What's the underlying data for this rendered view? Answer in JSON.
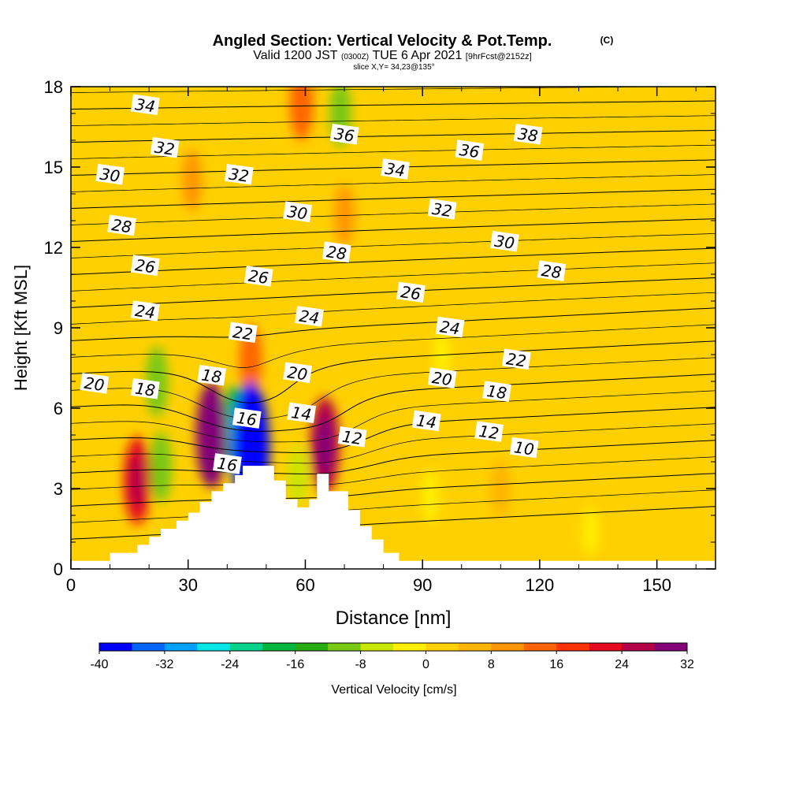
{
  "title": {
    "main": "Angled Section: Vertical Velocity & Pot.Temp.",
    "copyright": "(C)",
    "valid_prefix": "Valid 1200 JST",
    "valid_utc": "(0300Z)",
    "valid_date": "TUE 6 Apr 2021",
    "forecast": "[9hrFcst@2152z]",
    "slice": "slice X,Y= 34,23@135°"
  },
  "chart_data": {
    "type": "heatmap",
    "xlabel": "Distance [nm]",
    "ylabel": "Height [Kft MSL]",
    "xlim": [
      0,
      165
    ],
    "ylim": [
      0,
      18
    ],
    "x_ticks": [
      0,
      30,
      60,
      90,
      120,
      150
    ],
    "y_ticks": [
      0,
      3,
      6,
      9,
      12,
      15,
      18
    ],
    "colorbar": {
      "label": "Vertical Velocity [cm/s]",
      "tick_labels": [
        "-40",
        "-32",
        "-24",
        "-16",
        "-8",
        "0",
        "8",
        "16",
        "24",
        "32"
      ],
      "bins": [
        -40,
        -36,
        -32,
        -28,
        -24,
        -20,
        -16,
        -12,
        -8,
        -4,
        0,
        4,
        8,
        12,
        16,
        20,
        24,
        28,
        32
      ],
      "colors": [
        "#0000ff",
        "#0066ff",
        "#00a0ff",
        "#00e6e6",
        "#00d48c",
        "#00b43c",
        "#28aa14",
        "#78c814",
        "#c8e600",
        "#ffee00",
        "#ffd000",
        "#ffb400",
        "#ff9600",
        "#ff6400",
        "#ff3200",
        "#e60a1e",
        "#b40046",
        "#820078"
      ]
    },
    "terrain_profile": {
      "x": [
        0,
        10,
        10,
        17,
        17,
        20,
        20,
        23,
        23,
        27,
        27,
        30,
        30,
        33,
        33,
        36,
        36,
        39,
        39,
        42,
        42,
        44,
        44,
        52,
        52,
        55,
        55,
        58,
        58,
        61,
        61,
        63,
        63,
        66,
        66,
        71,
        71,
        74,
        74,
        77,
        77,
        80,
        80,
        84,
        84,
        88,
        88,
        90,
        90,
        165
      ],
      "height": [
        0.3,
        0.3,
        0.6,
        0.6,
        0.9,
        0.9,
        1.2,
        1.2,
        1.5,
        1.5,
        1.8,
        1.8,
        2.1,
        2.1,
        2.5,
        2.5,
        2.9,
        2.9,
        3.2,
        3.2,
        3.5,
        3.5,
        3.85,
        3.85,
        3.3,
        3.3,
        2.6,
        2.6,
        2.3,
        2.3,
        2.6,
        2.6,
        3.55,
        3.55,
        2.9,
        2.9,
        2.2,
        2.2,
        1.6,
        1.6,
        1.1,
        1.1,
        0.6,
        0.6,
        0.3,
        0.3,
        0.3,
        0.3,
        0.3,
        0.3
      ]
    },
    "vertical_velocity_features": [
      {
        "x": 17,
        "y": 3.3,
        "value": 20
      },
      {
        "x": 36,
        "y": 5.0,
        "value": 28
      },
      {
        "x": 46,
        "y": 4.5,
        "value": -40
      },
      {
        "x": 65,
        "y": 4.6,
        "value": 24
      },
      {
        "x": 42,
        "y": 5.2,
        "value": -20
      },
      {
        "x": 23,
        "y": 3.8,
        "value": -12
      },
      {
        "x": 22,
        "y": 7.0,
        "value": -12
      },
      {
        "x": 58,
        "y": 3.5,
        "value": -6
      },
      {
        "x": 46,
        "y": 7.8,
        "value": 12
      },
      {
        "x": 59,
        "y": 17.4,
        "value": 14
      },
      {
        "x": 69,
        "y": 17.0,
        "value": -10
      },
      {
        "x": 70,
        "y": 13.2,
        "value": 8
      },
      {
        "x": 31,
        "y": 14.5,
        "value": 8
      },
      {
        "x": 92,
        "y": 2.7,
        "value": -4
      },
      {
        "x": 133,
        "y": 1.4,
        "value": -2
      },
      {
        "x": 110,
        "y": 3.0,
        "value": 6
      },
      {
        "x": 95,
        "y": 8.0,
        "value": -2
      }
    ],
    "isotherm_labels": [
      {
        "value": "34",
        "x": 19,
        "y": 17.3
      },
      {
        "value": "32",
        "x": 24,
        "y": 15.7
      },
      {
        "value": "30",
        "x": 10,
        "y": 14.7
      },
      {
        "value": "28",
        "x": 13,
        "y": 12.8
      },
      {
        "value": "26",
        "x": 19,
        "y": 11.3
      },
      {
        "value": "24",
        "x": 19,
        "y": 9.6
      },
      {
        "value": "20",
        "x": 6,
        "y": 6.9
      },
      {
        "value": "18",
        "x": 19,
        "y": 6.7
      },
      {
        "value": "18",
        "x": 36,
        "y": 7.2
      },
      {
        "value": "16",
        "x": 45,
        "y": 5.6
      },
      {
        "value": "16",
        "x": 40,
        "y": 3.9
      },
      {
        "value": "14",
        "x": 59,
        "y": 5.8
      },
      {
        "value": "12",
        "x": 72,
        "y": 4.9
      },
      {
        "value": "22",
        "x": 44,
        "y": 8.8
      },
      {
        "value": "20",
        "x": 58,
        "y": 7.3
      },
      {
        "value": "24",
        "x": 61,
        "y": 9.4
      },
      {
        "value": "26",
        "x": 48,
        "y": 10.9
      },
      {
        "value": "28",
        "x": 68,
        "y": 11.8
      },
      {
        "value": "30",
        "x": 58,
        "y": 13.3
      },
      {
        "value": "32",
        "x": 43,
        "y": 14.7
      },
      {
        "value": "36",
        "x": 70,
        "y": 16.2
      },
      {
        "value": "34",
        "x": 83,
        "y": 14.9
      },
      {
        "value": "32",
        "x": 95,
        "y": 13.4
      },
      {
        "value": "30",
        "x": 111,
        "y": 12.2
      },
      {
        "value": "28",
        "x": 123,
        "y": 11.1
      },
      {
        "value": "26",
        "x": 87,
        "y": 10.3
      },
      {
        "value": "24",
        "x": 97,
        "y": 9.0
      },
      {
        "value": "22",
        "x": 114,
        "y": 7.8
      },
      {
        "value": "20",
        "x": 95,
        "y": 7.1
      },
      {
        "value": "18",
        "x": 109,
        "y": 6.6
      },
      {
        "value": "14",
        "x": 91,
        "y": 5.5
      },
      {
        "value": "12",
        "x": 107,
        "y": 5.1
      },
      {
        "value": "10",
        "x": 116,
        "y": 4.5
      },
      {
        "value": "36",
        "x": 102,
        "y": 15.6
      },
      {
        "value": "38",
        "x": 117,
        "y": 16.2
      }
    ],
    "grid": false,
    "colorbar_position": "bottom"
  }
}
